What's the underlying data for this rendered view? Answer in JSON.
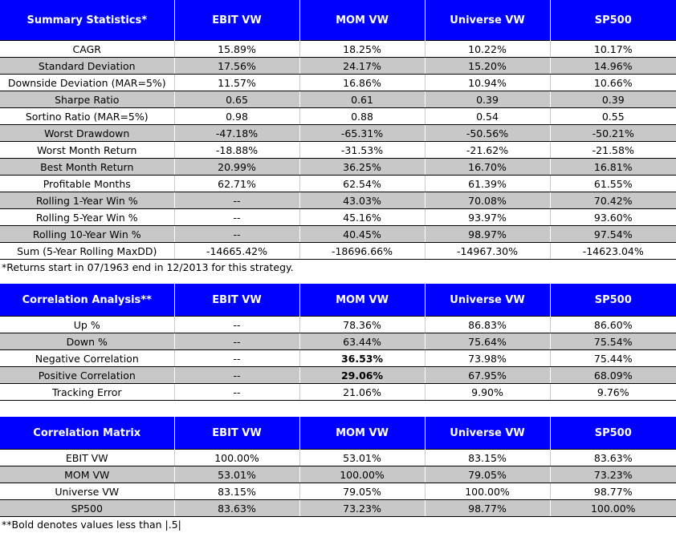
{
  "summary": {
    "headers": [
      "Summary Statistics*",
      "EBIT VW",
      "MOM VW",
      "Universe VW",
      "SP500"
    ],
    "rows": [
      [
        "CAGR",
        "15.89%",
        "18.25%",
        "10.22%",
        "10.17%"
      ],
      [
        "Standard Deviation",
        "17.56%",
        "24.17%",
        "15.20%",
        "14.96%"
      ],
      [
        "Downside Deviation (MAR=5%)",
        "11.57%",
        "16.86%",
        "10.94%",
        "10.66%"
      ],
      [
        "Sharpe Ratio",
        "0.65",
        "0.61",
        "0.39",
        "0.39"
      ],
      [
        "Sortino Ratio (MAR=5%)",
        "0.98",
        "0.88",
        "0.54",
        "0.55"
      ],
      [
        "Worst Drawdown",
        "-47.18%",
        "-65.31%",
        "-50.56%",
        "-50.21%"
      ],
      [
        "Worst Month Return",
        "-18.88%",
        "-31.53%",
        "-21.62%",
        "-21.58%"
      ],
      [
        "Best Month Return",
        "20.99%",
        "36.25%",
        "16.70%",
        "16.81%"
      ],
      [
        "Profitable Months",
        "62.71%",
        "62.54%",
        "61.39%",
        "61.55%"
      ],
      [
        "Rolling 1-Year Win %",
        "--",
        "43.03%",
        "70.08%",
        "70.42%"
      ],
      [
        "Rolling 5-Year Win %",
        "--",
        "45.16%",
        "93.97%",
        "93.60%"
      ],
      [
        "Rolling 10-Year Win %",
        "--",
        "40.45%",
        "98.97%",
        "97.54%"
      ],
      [
        "Sum (5-Year Rolling MaxDD)",
        "-14665.42%",
        "-18696.66%",
        "-14967.30%",
        "-14623.04%"
      ]
    ],
    "note": "*Returns start in 07/1963 end in 12/2013 for this strategy."
  },
  "correlation_analysis": {
    "headers": [
      "Correlation Analysis**",
      "EBIT VW",
      "MOM VW",
      "Universe VW",
      "SP500"
    ],
    "rows": [
      [
        "Up %",
        "--",
        "78.36%",
        "86.83%",
        "86.60%"
      ],
      [
        "Down %",
        "--",
        "63.44%",
        "75.64%",
        "75.54%"
      ],
      [
        "Negative Correlation",
        "--",
        "36.53%",
        "73.98%",
        "75.44%"
      ],
      [
        "Positive Correlation",
        "--",
        "29.06%",
        "67.95%",
        "68.09%"
      ],
      [
        "Tracking Error",
        "--",
        "21.06%",
        "9.90%",
        "9.76%"
      ]
    ]
  },
  "correlation_matrix": {
    "headers": [
      "Correlation Matrix",
      "EBIT VW",
      "MOM VW",
      "Universe VW",
      "SP500"
    ],
    "rows": [
      [
        "EBIT VW",
        "100.00%",
        "53.01%",
        "83.15%",
        "83.63%"
      ],
      [
        "MOM VW",
        "53.01%",
        "100.00%",
        "79.05%",
        "73.23%"
      ],
      [
        "Universe VW",
        "83.15%",
        "79.05%",
        "100.00%",
        "98.77%"
      ],
      [
        "SP500",
        "83.63%",
        "73.23%",
        "98.77%",
        "100.00%"
      ]
    ],
    "note": "**Bold denotes values less than |.5|"
  },
  "colors": {
    "header_bg": "#0000ff",
    "header_text": "#ffffff",
    "band_bg": "#c8c8c8"
  }
}
